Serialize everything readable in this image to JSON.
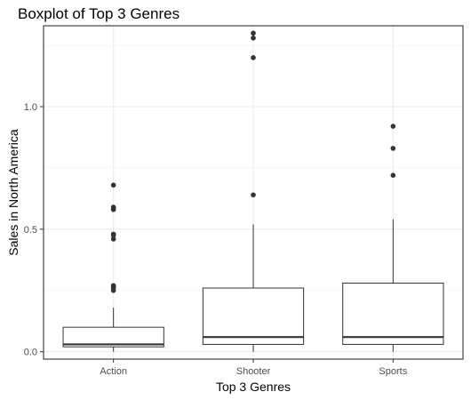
{
  "chart_data": {
    "type": "boxplot",
    "title": "Boxplot of Top 3 Genres",
    "xlabel": "Top 3 Genres",
    "ylabel": "Sales in North America",
    "categories": [
      "Action",
      "Shooter",
      "Sports"
    ],
    "ylim": [
      -0.03,
      1.33
    ],
    "yticks": [
      0.0,
      0.5,
      1.0
    ],
    "ytick_labels": [
      "0.0",
      "0.5",
      "1.0"
    ],
    "grid": true,
    "boxes": [
      {
        "category": "Action",
        "lower_whisker": 0.0,
        "q1": 0.02,
        "median": 0.03,
        "q3": 0.1,
        "upper_whisker": 0.18,
        "outliers": [
          0.25,
          0.26,
          0.265,
          0.27,
          0.46,
          0.475,
          0.48,
          0.58,
          0.585,
          0.59,
          0.68
        ]
      },
      {
        "category": "Shooter",
        "lower_whisker": 0.0,
        "q1": 0.03,
        "median": 0.06,
        "q3": 0.26,
        "upper_whisker": 0.52,
        "outliers": [
          0.64,
          1.2,
          1.28,
          1.3
        ]
      },
      {
        "category": "Sports",
        "lower_whisker": 0.0,
        "q1": 0.03,
        "median": 0.06,
        "q3": 0.28,
        "upper_whisker": 0.54,
        "outliers": [
          0.72,
          0.83,
          0.92
        ]
      }
    ]
  }
}
